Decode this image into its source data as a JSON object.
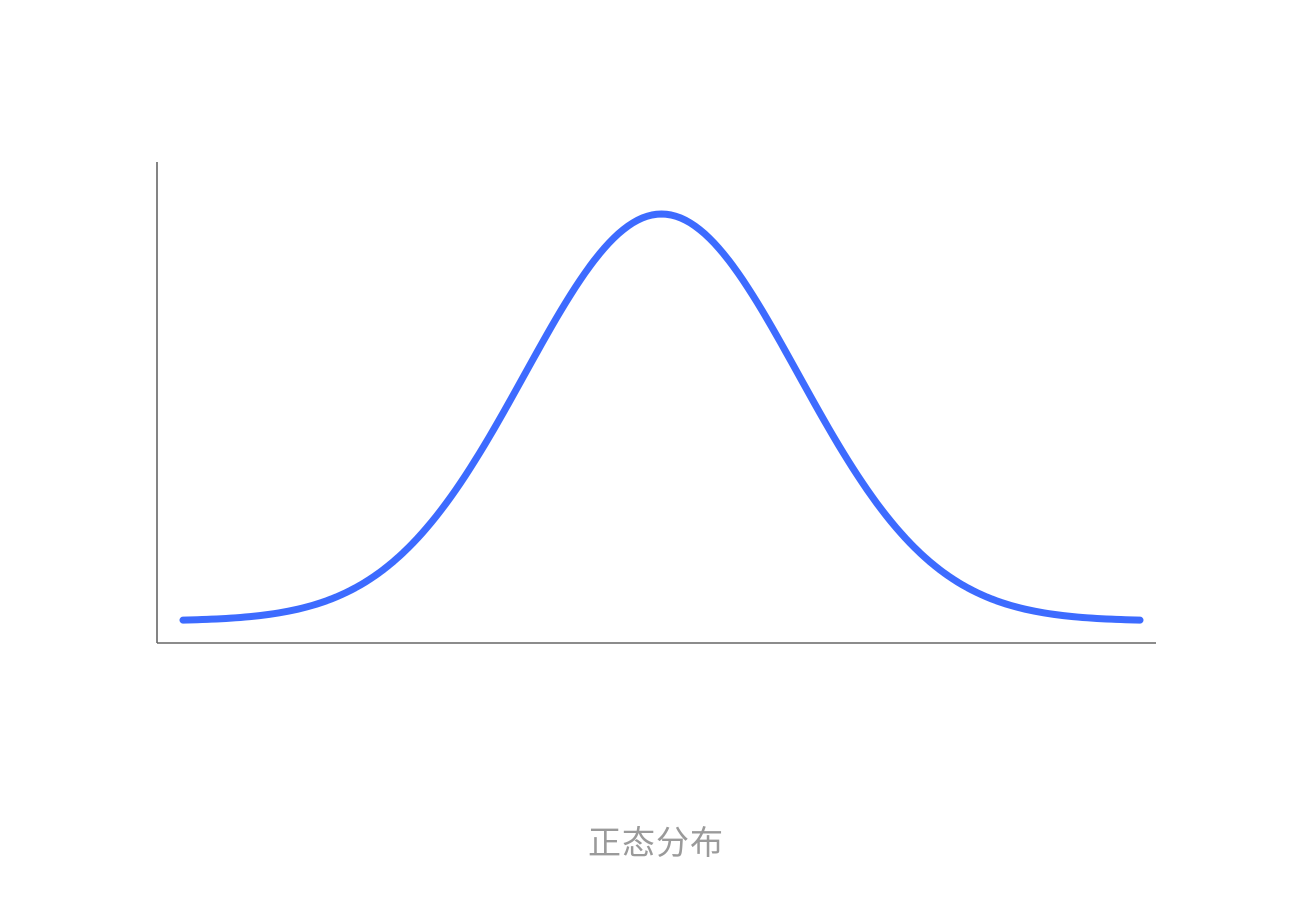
{
  "caption": "正态分布",
  "chart_data": {
    "type": "line",
    "series": [
      {
        "x": [
          -3.5,
          -3.0,
          -2.5,
          -2.0,
          -1.5,
          -1.0,
          -0.5,
          0.0,
          0.5,
          1.0,
          1.5,
          2.0,
          2.5,
          3.0,
          3.5
        ],
        "values": [
          0.0022,
          0.011,
          0.044,
          0.135,
          0.325,
          0.607,
          0.882,
          1.0,
          0.882,
          0.607,
          0.325,
          0.135,
          0.044,
          0.011,
          0.0022
        ]
      }
    ],
    "xlim": [
      -3.5,
      3.5
    ],
    "ylim": [
      0,
      1
    ],
    "grid": false,
    "legend": "none",
    "colors": {
      "line": "#3d6bff",
      "axis": "#666666",
      "caption": "#9a9a9a"
    }
  }
}
